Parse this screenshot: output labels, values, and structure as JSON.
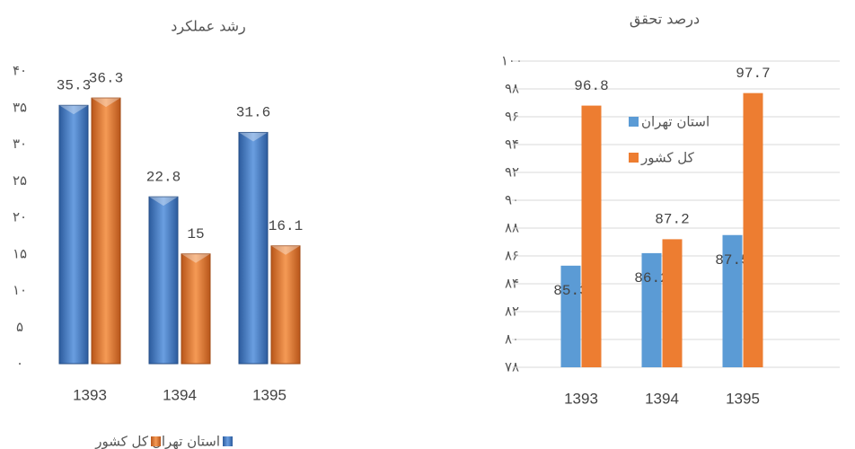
{
  "chart_data": [
    {
      "type": "bar3d",
      "title": "رشد عملکرد",
      "categories": [
        "1393",
        "1394",
        "1395"
      ],
      "series": [
        {
          "name": "استان تهران",
          "color": "#4f86d0",
          "values": [
            35.3,
            22.8,
            31.6
          ]
        },
        {
          "name": "کل کشور",
          "color": "#f07f30",
          "values": [
            36.3,
            15,
            16.1
          ]
        }
      ],
      "ylim": [
        0,
        40
      ],
      "yticks": [
        {
          "value": 0,
          "label": "۰"
        },
        {
          "value": 5,
          "label": "۵"
        },
        {
          "value": 10,
          "label": "۱۰"
        },
        {
          "value": 15,
          "label": "۱۵"
        },
        {
          "value": 20,
          "label": "۲۰"
        },
        {
          "value": 25,
          "label": "۲۵"
        },
        {
          "value": 30,
          "label": "۳۰"
        },
        {
          "value": 35,
          "label": "۳۵"
        },
        {
          "value": 40,
          "label": "۴۰"
        }
      ],
      "grid": false,
      "legend": "bottom"
    },
    {
      "type": "bar",
      "title": "درصد تحقق",
      "categories": [
        "1393",
        "1394",
        "1395"
      ],
      "series": [
        {
          "name": "استان تهران",
          "color": "#5b9bd5",
          "values": [
            85.3,
            86.2,
            87.5
          ]
        },
        {
          "name": "کل کشور",
          "color": "#ed7d31",
          "values": [
            96.8,
            87.2,
            97.7
          ]
        }
      ],
      "ylim": [
        78,
        100
      ],
      "yticks": [
        {
          "value": 78,
          "label": "۷۸"
        },
        {
          "value": 80,
          "label": "۸۰"
        },
        {
          "value": 82,
          "label": "۸۲"
        },
        {
          "value": 84,
          "label": "۸۴"
        },
        {
          "value": 86,
          "label": "۸۶"
        },
        {
          "value": 88,
          "label": "۸۸"
        },
        {
          "value": 90,
          "label": "۹۰"
        },
        {
          "value": 92,
          "label": "۹۲"
        },
        {
          "value": 94,
          "label": "۹۴"
        },
        {
          "value": 96,
          "label": "۹۶"
        },
        {
          "value": 98,
          "label": "۹۸"
        },
        {
          "value": 100,
          "label": "۱۰۰"
        }
      ],
      "grid": true,
      "legend": "inside"
    }
  ]
}
